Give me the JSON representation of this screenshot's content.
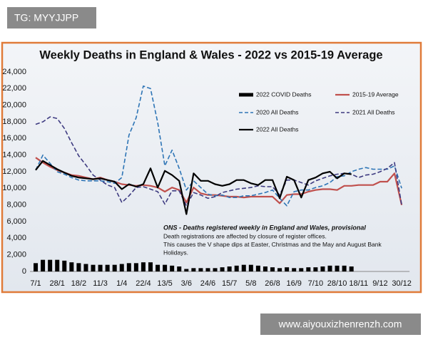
{
  "overlay_labels": [
    "TG: MYYJJPP",
    "www.aiyouxizhenrenzh.com"
  ],
  "chart_data": {
    "type": "line",
    "title": "Weekly Deaths in England & Wales - 2022 vs 2015-19 Average",
    "categories": [
      "7/1",
      null,
      null,
      "28/1",
      null,
      null,
      "18/2",
      null,
      null,
      "11/3",
      null,
      null,
      "1/4",
      null,
      null,
      "22/4",
      null,
      null,
      "13/5",
      null,
      null,
      "3/6",
      null,
      null,
      "24/6",
      null,
      null,
      "15/7",
      null,
      null,
      "5/8",
      null,
      null,
      "26/8",
      null,
      null,
      "16/9",
      null,
      null,
      "7/10",
      null,
      null,
      "28/10",
      null,
      null,
      "18/11",
      null,
      null,
      "9/12",
      null,
      null,
      "30/12"
    ],
    "ylim": [
      0,
      24000
    ],
    "yticks": [
      0,
      {
        "value": 2000,
        "label": "2,000"
      },
      {
        "value": 4000,
        "label": "4,000"
      },
      {
        "value": 6000,
        "label": "6,000"
      },
      {
        "value": 8000,
        "label": "8,000"
      },
      {
        "value": 10000,
        "label": "10,000"
      },
      {
        "value": 12000,
        "label": "12,000"
      },
      {
        "value": 14000,
        "label": "14,000"
      },
      {
        "value": 16000,
        "label": "16,000"
      },
      {
        "value": 18000,
        "label": "18,000"
      },
      {
        "value": 20000,
        "label": "20,000"
      },
      {
        "value": 22000,
        "label": "22,000"
      },
      {
        "value": 24000,
        "label": "24,000"
      }
    ],
    "grid": false,
    "series": [
      {
        "name": "2022 COVID Deaths",
        "style": "bar",
        "color": "#000000",
        "values": [
          1000,
          1400,
          1400,
          1400,
          1300,
          1100,
          1000,
          900,
          800,
          800,
          800,
          800,
          900,
          1000,
          1000,
          1100,
          1100,
          800,
          800,
          700,
          600,
          300,
          400,
          400,
          400,
          400,
          500,
          600,
          700,
          800,
          800,
          700,
          600,
          500,
          400,
          500,
          400,
          400,
          500,
          500,
          600,
          700,
          700,
          700,
          600,
          null,
          null,
          null,
          null,
          null,
          null,
          null
        ]
      },
      {
        "name": "2015-19 Average",
        "style": "line",
        "dashed": false,
        "color": "#c0504d",
        "values": [
          13700,
          13100,
          12600,
          12200,
          11900,
          11600,
          11500,
          11300,
          11100,
          11300,
          11000,
          10800,
          10500,
          10400,
          10300,
          10400,
          10300,
          10100,
          9600,
          10100,
          9800,
          8300,
          10100,
          9400,
          9200,
          9200,
          9100,
          9000,
          9000,
          8900,
          9000,
          9000,
          9000,
          9000,
          8200,
          9200,
          9300,
          9300,
          9600,
          9800,
          9900,
          9900,
          9800,
          10300,
          10300,
          10400,
          10400,
          10400,
          10800,
          10800,
          11800,
          8000
        ]
      },
      {
        "name": "2020 All Deaths",
        "style": "line",
        "dashed": true,
        "color": "#2e75b6",
        "values": [
          12200,
          14000,
          13000,
          12000,
          11700,
          11300,
          11000,
          10900,
          10900,
          10900,
          10800,
          10600,
          11300,
          16400,
          18500,
          22300,
          22000,
          17900,
          12700,
          14600,
          12400,
          9800,
          10900,
          10100,
          9300,
          9100,
          9200,
          8900,
          8900,
          9100,
          9100,
          9300,
          9500,
          9800,
          8800,
          7900,
          9600,
          9800,
          9800,
          10100,
          10300,
          10700,
          11400,
          11500,
          12000,
          12300,
          12500,
          12300,
          12300,
          12300,
          12700,
          10000
        ]
      },
      {
        "name": "2021 All Deaths",
        "style": "line",
        "dashed": true,
        "color": "#3d3a80",
        "values": [
          17700,
          18000,
          18600,
          18400,
          17200,
          15500,
          13900,
          12800,
          11600,
          11000,
          10400,
          10100,
          8300,
          9100,
          10100,
          10200,
          9900,
          9600,
          8100,
          9700,
          9700,
          7900,
          9500,
          9200,
          8800,
          9000,
          9500,
          9700,
          9900,
          10000,
          10100,
          10300,
          10200,
          10200,
          9200,
          11000,
          11000,
          10700,
          10400,
          10900,
          11200,
          11500,
          11700,
          11800,
          11700,
          11300,
          11600,
          11700,
          12000,
          12400,
          13100,
          8000
        ]
      },
      {
        "name": "2022 All Deaths",
        "style": "line",
        "dashed": false,
        "color": "#000000",
        "values": [
          12200,
          13300,
          12800,
          12300,
          11900,
          11500,
          11300,
          11200,
          11100,
          11200,
          11000,
          10800,
          9900,
          10500,
          10200,
          10500,
          12400,
          10100,
          12100,
          11600,
          10900,
          6900,
          11800,
          10900,
          10900,
          10500,
          10300,
          10500,
          11000,
          11000,
          10600,
          10400,
          11000,
          11000,
          8800,
          11400,
          11000,
          8900,
          11000,
          11300,
          11800,
          12000,
          11200,
          11800,
          11700,
          null,
          null,
          null,
          null,
          null,
          null,
          null
        ]
      }
    ],
    "annotation": {
      "title": "ONS - Deaths registered weekly in England and Wales, provisional",
      "lines": [
        "Death registrations are affected by closure of register offices.",
        "This causes the V shape dips at Easter, Christmas and the May and August Bank",
        "Holidays."
      ]
    }
  }
}
